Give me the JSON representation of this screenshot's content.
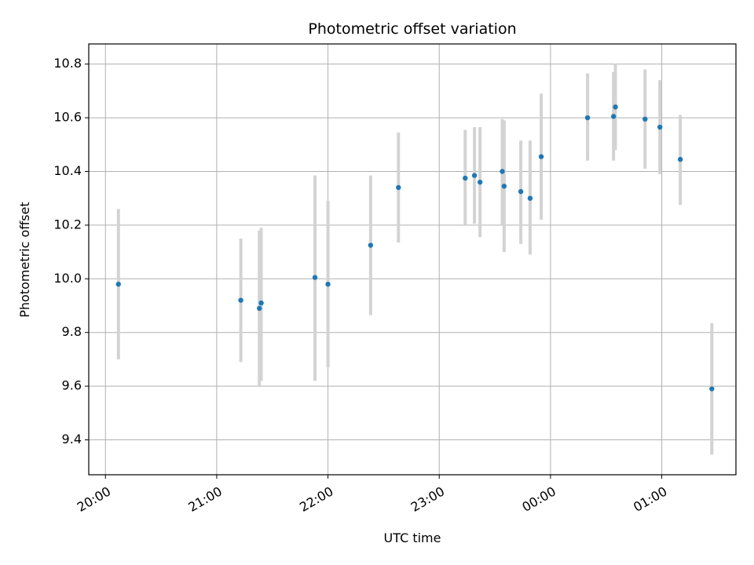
{
  "chart_data": {
    "type": "scatter",
    "title": "Photometric offset variation",
    "xlabel": "UTC time",
    "ylabel": "Photometric offset",
    "xlim": [
      "19:51",
      "01:40"
    ],
    "ylim": [
      9.27,
      10.875
    ],
    "x_ticks": [
      "20:00",
      "21:00",
      "22:00",
      "23:00",
      "00:00",
      "01:00"
    ],
    "y_ticks": [
      "9.4",
      "9.6",
      "9.8",
      "10.0",
      "10.2",
      "10.4",
      "10.6",
      "10.8"
    ],
    "grid": true,
    "colors": {
      "marker": "#1f77b4",
      "errorbar": "#d3d3d3",
      "grid": "#b0b0b0"
    },
    "points": [
      {
        "time": "20:07",
        "y": 9.98,
        "ylow": 9.7,
        "yhigh": 10.26
      },
      {
        "time": "21:13",
        "y": 9.92,
        "ylow": 9.69,
        "yhigh": 10.15
      },
      {
        "time": "21:23",
        "y": 9.89,
        "ylow": 9.6,
        "yhigh": 10.18
      },
      {
        "time": "21:24",
        "y": 9.91,
        "ylow": 9.62,
        "yhigh": 10.19
      },
      {
        "time": "21:53",
        "y": 10.005,
        "ylow": 9.62,
        "yhigh": 10.385
      },
      {
        "time": "22:00",
        "y": 9.98,
        "ylow": 9.67,
        "yhigh": 10.29
      },
      {
        "time": "22:23",
        "y": 10.125,
        "ylow": 9.865,
        "yhigh": 10.385
      },
      {
        "time": "22:38",
        "y": 10.34,
        "ylow": 10.135,
        "yhigh": 10.545
      },
      {
        "time": "23:14",
        "y": 10.375,
        "ylow": 10.2,
        "yhigh": 10.555
      },
      {
        "time": "23:19",
        "y": 10.385,
        "ylow": 10.205,
        "yhigh": 10.565
      },
      {
        "time": "23:22",
        "y": 10.36,
        "ylow": 10.155,
        "yhigh": 10.565
      },
      {
        "time": "23:34",
        "y": 10.4,
        "ylow": 10.2,
        "yhigh": 10.595
      },
      {
        "time": "23:35",
        "y": 10.345,
        "ylow": 10.1,
        "yhigh": 10.59
      },
      {
        "time": "23:44",
        "y": 10.325,
        "ylow": 10.13,
        "yhigh": 10.515
      },
      {
        "time": "23:49",
        "y": 10.3,
        "ylow": 10.09,
        "yhigh": 10.515
      },
      {
        "time": "23:55",
        "y": 10.455,
        "ylow": 10.22,
        "yhigh": 10.69
      },
      {
        "time": "00:20",
        "y": 10.6,
        "ylow": 10.44,
        "yhigh": 10.765
      },
      {
        "time": "00:34",
        "y": 10.605,
        "ylow": 10.44,
        "yhigh": 10.77
      },
      {
        "time": "00:35",
        "y": 10.64,
        "ylow": 10.48,
        "yhigh": 10.8
      },
      {
        "time": "00:51",
        "y": 10.595,
        "ylow": 10.41,
        "yhigh": 10.78
      },
      {
        "time": "00:59",
        "y": 10.565,
        "ylow": 10.39,
        "yhigh": 10.74
      },
      {
        "time": "01:10",
        "y": 10.445,
        "ylow": 10.275,
        "yhigh": 10.61
      },
      {
        "time": "01:27",
        "y": 9.59,
        "ylow": 9.345,
        "yhigh": 9.835
      }
    ]
  }
}
